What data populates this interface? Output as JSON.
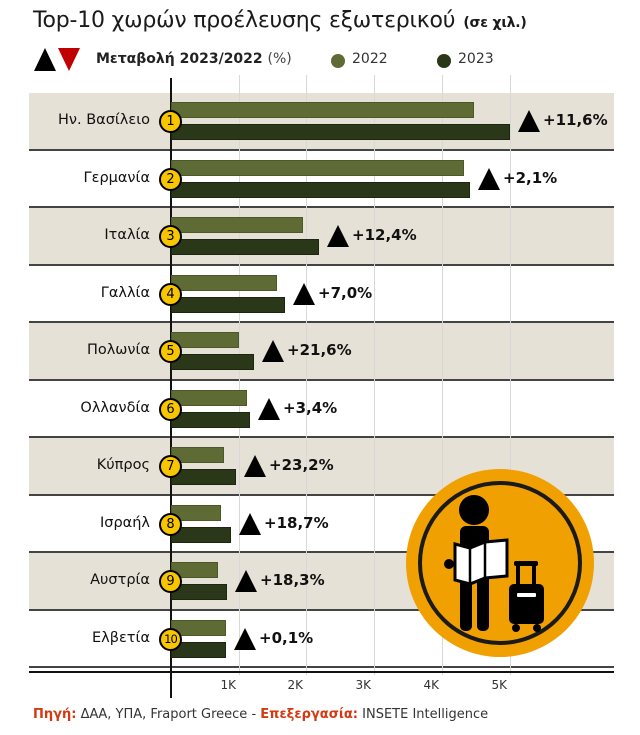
{
  "title": "Top-10 χωρών προέλευσης εξωτερικού",
  "unit": "(σε χιλ.)",
  "legend": {
    "change_label": "Μεταβολή 2023/2022",
    "change_unit": "(%)",
    "up_icon": "triangle-up-icon",
    "down_icon": "triangle-down-icon",
    "series": [
      {
        "name": "2022",
        "color": "#5f6b35"
      },
      {
        "name": "2023",
        "color": "#2a3718"
      }
    ]
  },
  "colors": {
    "bar_2022": "#5f6b35",
    "bar_2023": "#2a3718",
    "band_shade": "#e6e1d6",
    "badge": "#f7c600",
    "increase": "#000000",
    "decrease": "#c00000",
    "icon_circle": "#f0a000",
    "source_label": "#d33a12"
  },
  "axis": {
    "ticks": [
      "1K",
      "2K",
      "3K",
      "4K",
      "5K"
    ]
  },
  "chart_data": {
    "type": "bar",
    "orientation": "horizontal",
    "title": "Top-10 χωρών προέλευσης εξωτερικού (σε χιλ.)",
    "xlabel": "",
    "ylabel": "",
    "xlim": [
      0,
      5500
    ],
    "x_ticks": [
      "1K",
      "2K",
      "3K",
      "4K",
      "5K"
    ],
    "grid": true,
    "legend_position": "top",
    "categories": [
      "Ην. Βασίλειο",
      "Γερμανία",
      "Ιταλία",
      "Γαλλία",
      "Πολωνία",
      "Ολλανδία",
      "Κύπρος",
      "Ισραήλ",
      "Αυστρία",
      "Ελβετία"
    ],
    "ranks": [
      1,
      2,
      3,
      4,
      5,
      6,
      7,
      8,
      9,
      10
    ],
    "series": [
      {
        "name": "2022",
        "values": [
          4480,
          4330,
          1950,
          1570,
          1010,
          1120,
          780,
          740,
          700,
          810
        ]
      },
      {
        "name": "2023",
        "values": [
          5000,
          4420,
          2190,
          1680,
          1230,
          1160,
          960,
          880,
          830,
          810
        ]
      }
    ],
    "change_pct": [
      "+11,6%",
      "+2,1%",
      "+12,4%",
      "+7,0%",
      "+21,6%",
      "+3,4%",
      "+23,2%",
      "+18,7%",
      "+18,3%",
      "+0,1%"
    ],
    "change_direction": [
      "up",
      "up",
      "up",
      "up",
      "up",
      "up",
      "up",
      "up",
      "up",
      "up"
    ]
  },
  "source": {
    "label": "Πηγή:",
    "text": "ΔΑΑ, ΥΠΑ, Fraport Greece -",
    "processing_label": "Επεξεργασία:",
    "processing_text": "INSETE Intelligence"
  },
  "illustration": {
    "icon": "traveler-with-map-and-suitcase-icon"
  }
}
